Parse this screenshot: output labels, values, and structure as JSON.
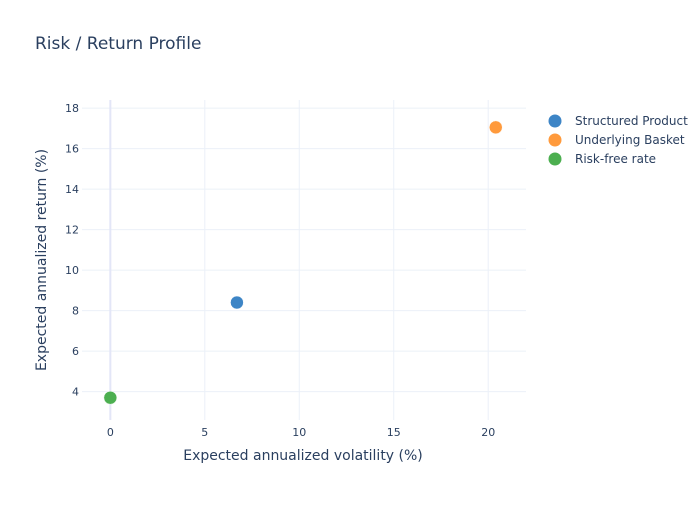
{
  "chart_data": {
    "type": "scatter",
    "title": "Risk / Return Profile",
    "xlabel": "Expected annualized volatility (%)",
    "ylabel": "Expected annualized return (%)",
    "xlim": [
      -1.5,
      22
    ],
    "ylim": [
      2.6,
      18.4
    ],
    "x_ticks": [
      0,
      5,
      10,
      15,
      20
    ],
    "y_ticks": [
      4,
      6,
      8,
      10,
      12,
      14,
      16,
      18
    ],
    "grid": true,
    "legend_position": "top-right",
    "series": [
      {
        "name": "Structured Product",
        "color": "#3d85c6",
        "points": [
          {
            "x": 6.7,
            "y": 8.4
          }
        ]
      },
      {
        "name": "Underlying Basket",
        "color": "#ff9a3c",
        "points": [
          {
            "x": 20.4,
            "y": 17.05
          }
        ]
      },
      {
        "name": "Risk-free rate",
        "color": "#4caf50",
        "points": [
          {
            "x": 0.0,
            "y": 3.7
          }
        ]
      }
    ]
  }
}
